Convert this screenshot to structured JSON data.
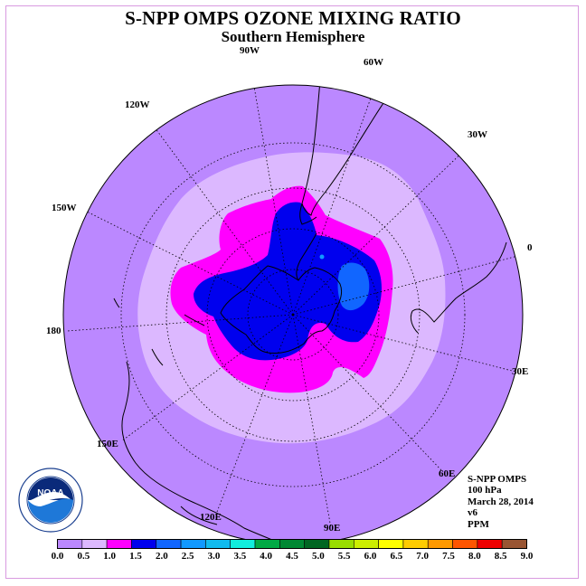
{
  "title": "S-NPP OMPS OZONE MIXING RATIO",
  "subtitle": "Southern Hemisphere",
  "longitude_labels": [
    "90W",
    "60W",
    "30W",
    "0",
    "30E",
    "60E",
    "90E",
    "120E",
    "150E",
    "180",
    "150W",
    "120W"
  ],
  "logo": {
    "text": "NOAA",
    "ring_text": "NATIONAL OCEANIC AND ATMOSPHERIC ADMINISTRATION · U.S. DEPARTMENT OF COMMERCE"
  },
  "info": {
    "instrument": "S-NPP OMPS",
    "level": "100 hPa",
    "date": "March 28, 2014",
    "version": "v6",
    "units": "PPM"
  },
  "colorbar": {
    "ticks": [
      "0.0",
      "0.5",
      "1.0",
      "1.5",
      "2.0",
      "2.5",
      "3.0",
      "3.5",
      "4.0",
      "4.5",
      "5.0",
      "5.5",
      "6.0",
      "6.5",
      "7.0",
      "7.5",
      "8.0",
      "8.5",
      "9.0"
    ],
    "colors": [
      "#bb88ff",
      "#dcb8ff",
      "#ff00ff",
      "#0000ee",
      "#1166ff",
      "#1199ff",
      "#11bbee",
      "#11eedd",
      "#00aa44",
      "#008833",
      "#006622",
      "#99dd00",
      "#ccee00",
      "#ffff00",
      "#ffcc00",
      "#ff9900",
      "#ff5500",
      "#ee0000",
      "#995533"
    ]
  },
  "chart_data": {
    "type": "polar-stereographic contour map",
    "hemisphere": "Southern",
    "units": "PPM",
    "pressure_level": "100 hPa",
    "contour_levels": [
      0.0,
      0.5,
      1.0,
      1.5,
      2.0,
      2.5,
      3.0,
      3.5,
      4.0,
      4.5,
      5.0,
      5.5,
      6.0,
      6.5,
      7.0,
      7.5,
      8.0,
      8.5,
      9.0
    ],
    "visible_ranges": [
      "0.0-0.5",
      "0.5-1.0",
      "1.0-1.5",
      "1.5-2.0",
      "2.0-2.5"
    ]
  }
}
